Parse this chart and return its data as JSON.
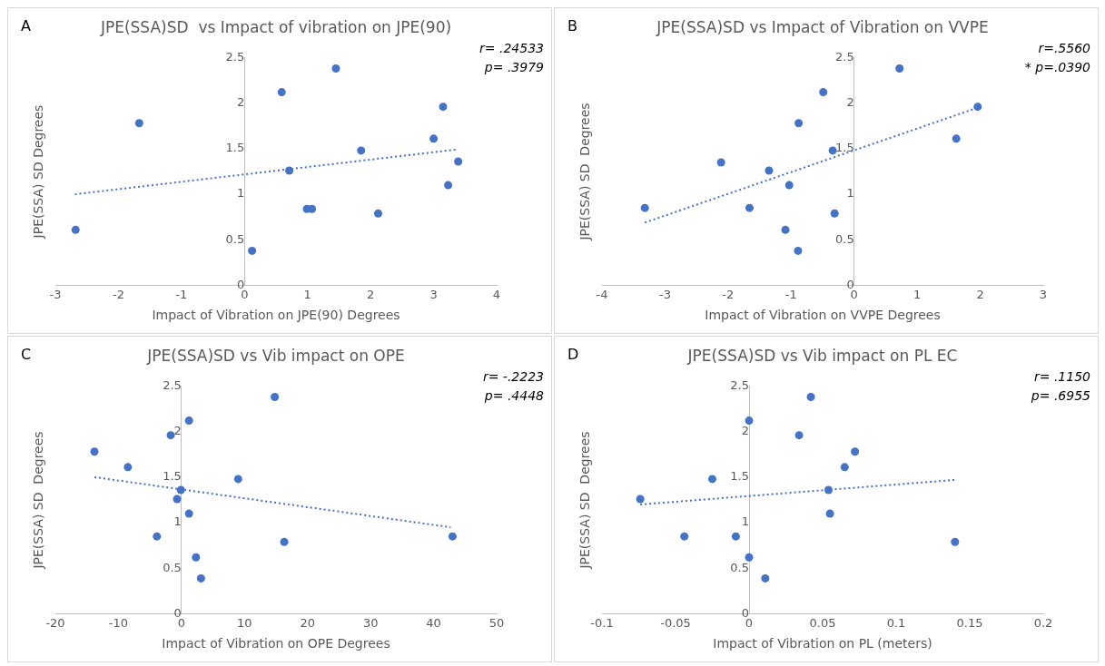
{
  "chart_data": [
    {
      "type": "scatter",
      "title": "JPE(SSA)SD  vs Impact of vibration on JPE(90)",
      "xlabel": "Impact of Vibration on JPE(90) Degrees",
      "ylabel": "JPE(SSA) SD Degrees",
      "annotations": [
        "A",
        "r= .24533",
        "p= .3979"
      ],
      "xlim": [
        -3,
        4
      ],
      "xticks": [
        -3,
        -2,
        -1,
        0,
        1,
        2,
        3,
        4
      ],
      "ylim": [
        0,
        2.5
      ],
      "yticks": [
        0,
        0.5,
        1,
        1.5,
        2,
        2.5
      ],
      "grid": false,
      "legend": false,
      "series": [
        {
          "type": "scatter",
          "color": "#4472c4",
          "marker": "circle",
          "x": [
            -2.68,
            -1.67,
            0.59,
            1.45,
            0.71,
            0.99,
            1.07,
            0.12,
            1.85,
            2.12,
            3.0,
            3.15,
            3.23,
            3.39
          ],
          "values": [
            0.61,
            1.78,
            2.12,
            2.38,
            1.26,
            0.84,
            0.84,
            0.38,
            1.48,
            0.79,
            1.61,
            1.96,
            1.1,
            1.36
          ]
        },
        {
          "type": "line",
          "color": "#4472c4",
          "line_style": "dotted",
          "marker": "none",
          "x": [
            -2.69,
            3.35
          ],
          "values": [
            1.0,
            1.49
          ]
        }
      ]
    },
    {
      "type": "scatter",
      "title": "JPE(SSA)SD vs Impact of Vibration on VVPE",
      "xlabel": "Impact of Vibration on VVPE Degrees",
      "ylabel": "JPE(SSA) SD  Degrees",
      "annotations": [
        "B",
        "r=.5560",
        "* p=.0390"
      ],
      "xlim": [
        -4,
        3
      ],
      "xticks": [
        -4,
        -3,
        -2,
        -1,
        0,
        1,
        2,
        3
      ],
      "ylim": [
        0,
        2.5
      ],
      "yticks": [
        0,
        0.5,
        1,
        1.5,
        2,
        2.5
      ],
      "grid": false,
      "legend": false,
      "series": [
        {
          "type": "scatter",
          "color": "#4472c4",
          "marker": "circle",
          "x": [
            -3.32,
            -2.11,
            -1.66,
            -1.35,
            -1.03,
            -1.09,
            -0.89,
            -0.88,
            -0.49,
            -0.34,
            -0.31,
            0.72,
            1.62,
            1.96
          ],
          "values": [
            0.85,
            1.35,
            0.85,
            1.26,
            1.1,
            0.61,
            0.38,
            1.78,
            2.12,
            1.48,
            0.79,
            2.38,
            1.61,
            1.96
          ]
        },
        {
          "type": "line",
          "color": "#4472c4",
          "line_style": "dotted",
          "marker": "none",
          "x": [
            -3.32,
            1.96
          ],
          "values": [
            0.69,
            1.95
          ]
        }
      ]
    },
    {
      "type": "scatter",
      "title": "JPE(SSA)SD vs Vib impact on OPE",
      "xlabel": "Impact of Vibration on OPE Degrees",
      "ylabel": "JPE(SSA) SD  Degrees",
      "annotations": [
        "C",
        "r= -.2223",
        "p= .4448"
      ],
      "xlim": [
        -20,
        50
      ],
      "xticks": [
        -20,
        -10,
        0,
        10,
        20,
        30,
        40,
        50
      ],
      "ylim": [
        0,
        2.5
      ],
      "yticks": [
        0,
        0.5,
        1,
        1.5,
        2,
        2.5
      ],
      "grid": false,
      "legend": false,
      "series": [
        {
          "type": "scatter",
          "color": "#4472c4",
          "marker": "circle",
          "x": [
            -13.8,
            -8.5,
            -3.9,
            -1.7,
            -0.7,
            -0.1,
            1.2,
            1.2,
            2.3,
            3.1,
            9.0,
            14.8,
            16.3,
            43.0
          ],
          "values": [
            1.78,
            1.61,
            0.85,
            1.96,
            1.26,
            1.36,
            2.12,
            1.1,
            0.62,
            0.39,
            1.48,
            2.38,
            0.79,
            0.85
          ]
        },
        {
          "type": "line",
          "color": "#4472c4",
          "line_style": "dotted",
          "marker": "none",
          "x": [
            -13.8,
            42.7
          ],
          "values": [
            1.5,
            0.95
          ]
        }
      ]
    },
    {
      "type": "scatter",
      "title": "JPE(SSA)SD vs Vib impact on PL EC",
      "xlabel": "Impact of Vibration on PL (meters)",
      "ylabel": "JPE(SSA) SD  Degrees",
      "annotations": [
        "D",
        "r= .1150",
        "p= .6955"
      ],
      "xlim": [
        -0.1,
        0.2
      ],
      "xticks": [
        -0.1,
        -0.05,
        0,
        0.05,
        0.1,
        0.15,
        0.2
      ],
      "ylim": [
        0,
        2.5
      ],
      "yticks": [
        0,
        0.5,
        1,
        1.5,
        2,
        2.5
      ],
      "grid": false,
      "legend": false,
      "series": [
        {
          "type": "scatter",
          "color": "#4472c4",
          "marker": "circle",
          "x": [
            -0.074,
            -0.044,
            -0.025,
            -0.009,
            0.0,
            0.0,
            0.011,
            0.034,
            0.042,
            0.054,
            0.055,
            0.065,
            0.072,
            0.14
          ],
          "values": [
            1.26,
            0.85,
            1.48,
            0.85,
            0.62,
            2.12,
            0.39,
            1.96,
            2.38,
            1.36,
            1.1,
            1.61,
            1.78,
            0.79
          ]
        },
        {
          "type": "line",
          "color": "#4472c4",
          "line_style": "dotted",
          "marker": "none",
          "x": [
            -0.074,
            0.14
          ],
          "values": [
            1.2,
            1.47
          ]
        }
      ]
    }
  ]
}
